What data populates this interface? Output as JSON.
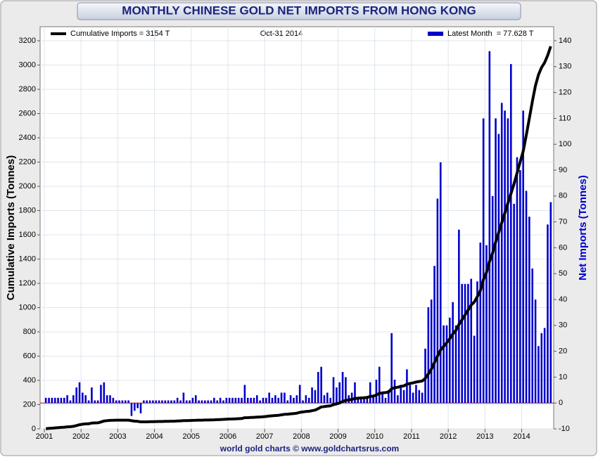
{
  "chart_data": {
    "type": "bar",
    "title": "MONTHLY CHINESE GOLD NET IMPORTS FROM HONG KONG",
    "annotation": "Oct-31  2014",
    "footer": "world gold charts © www.goldchartsrus.com",
    "y_label": "Cumulative Imports (Tonnes)",
    "y2_label": "Net Imports (Tonnes)",
    "categories": [
      "2001",
      null,
      null,
      null,
      null,
      null,
      null,
      null,
      null,
      null,
      null,
      null,
      "2002",
      null,
      null,
      null,
      null,
      null,
      null,
      null,
      null,
      null,
      null,
      null,
      "2003",
      null,
      null,
      null,
      null,
      null,
      null,
      null,
      null,
      null,
      null,
      null,
      "2004",
      null,
      null,
      null,
      null,
      null,
      null,
      null,
      null,
      null,
      null,
      null,
      "2005",
      null,
      null,
      null,
      null,
      null,
      null,
      null,
      null,
      null,
      null,
      null,
      "2006",
      null,
      null,
      null,
      null,
      null,
      null,
      null,
      null,
      null,
      null,
      null,
      "2007",
      null,
      null,
      null,
      null,
      null,
      null,
      null,
      null,
      null,
      null,
      null,
      "2008",
      null,
      null,
      null,
      null,
      null,
      null,
      null,
      null,
      null,
      null,
      null,
      "2009",
      null,
      null,
      null,
      null,
      null,
      null,
      null,
      null,
      null,
      null,
      null,
      "2010",
      null,
      null,
      null,
      null,
      null,
      null,
      null,
      null,
      null,
      null,
      null,
      "2011",
      null,
      null,
      null,
      null,
      null,
      null,
      null,
      null,
      null,
      null,
      null,
      "2012",
      null,
      null,
      null,
      null,
      null,
      null,
      null,
      null,
      null,
      null,
      null,
      "2013",
      null,
      null,
      null,
      null,
      null,
      null,
      null,
      null,
      null,
      null,
      null,
      "2014",
      null,
      null,
      null,
      null,
      null,
      null,
      null,
      null,
      null
    ],
    "series": [
      {
        "name": "Cumulative Imports = 3154 T",
        "color": "#000000",
        "type": "line",
        "values": [
          2,
          4,
          6,
          8,
          10,
          12,
          14,
          17,
          18,
          21,
          27,
          34,
          38,
          41,
          42,
          48,
          49,
          50,
          57,
          65,
          68,
          70,
          71,
          72,
          72,
          72,
          72,
          72,
          67,
          64,
          62,
          58,
          58,
          58,
          59,
          59,
          60,
          61,
          61,
          62,
          62,
          63,
          63,
          65,
          66,
          68,
          68,
          69,
          70,
          71,
          72,
          72,
          73,
          73,
          74,
          75,
          76,
          77,
          78,
          80,
          81,
          82,
          83,
          84,
          85,
          92,
          93,
          94,
          95,
          97,
          98,
          100,
          102,
          106,
          108,
          110,
          112,
          116,
          120,
          121,
          124,
          126,
          129,
          136,
          140,
          143,
          145,
          150,
          155,
          167,
          181,
          184,
          188,
          190,
          200,
          206,
          214,
          226,
          236,
          239,
          243,
          251,
          253,
          255,
          257,
          259,
          267,
          270,
          279,
          293,
          297,
          299,
          304,
          331,
          340,
          343,
          350,
          355,
          368,
          375,
          379,
          386,
          391,
          395,
          416,
          453,
          493,
          546,
          600,
          650,
          680,
          710,
          743,
          782,
          812,
          860,
          900,
          940,
          980,
          1020,
          1046,
          1090,
          1140,
          1230,
          1290,
          1380,
          1450,
          1540,
          1620,
          1700,
          1780,
          1860,
          1940,
          2020,
          2110,
          2200,
          2290,
          2420,
          2560,
          2700,
          2830,
          2920,
          2980,
          3020,
          3080,
          3154
        ]
      },
      {
        "name": "Latest Month  = 77.628 T",
        "color": "#0000cc",
        "type": "bar",
        "axis": "y2",
        "values": [
          2,
          2,
          2,
          2,
          2,
          2,
          2,
          3,
          1,
          3,
          6,
          8,
          4,
          3,
          1,
          6,
          1,
          1,
          7,
          8,
          3,
          3,
          2,
          1,
          1,
          1,
          1,
          1,
          -5,
          -3,
          -2,
          -4,
          1,
          1,
          1,
          1,
          1,
          1,
          1,
          1,
          1,
          1,
          1,
          2,
          1,
          4,
          1,
          1,
          2,
          3,
          1,
          1,
          1,
          1,
          1,
          2,
          1,
          2,
          1,
          2,
          2,
          2,
          2,
          2,
          2,
          7,
          2,
          2,
          2,
          3,
          1,
          2,
          2,
          4,
          2,
          3,
          2,
          4,
          4,
          1,
          3,
          2,
          3,
          7,
          1,
          3,
          2,
          6,
          5,
          12,
          14,
          3,
          4,
          2,
          10,
          6,
          8,
          12,
          10,
          3,
          4,
          8,
          2,
          2,
          2,
          2,
          8,
          3,
          9,
          14,
          4,
          2,
          5,
          27,
          9,
          3,
          7,
          5,
          13,
          7,
          4,
          7,
          5,
          4,
          21,
          37,
          40,
          53,
          79,
          93,
          30,
          30,
          33,
          39,
          30,
          67,
          46,
          46,
          46,
          48,
          26,
          47,
          62,
          110,
          61,
          136,
          80,
          110,
          104,
          116,
          113,
          110,
          131,
          77,
          95,
          90,
          113,
          82,
          72,
          52,
          40,
          22,
          27,
          29,
          69,
          77.628
        ]
      }
    ],
    "ylim": [
      0,
      3200
    ],
    "yticks": [
      0,
      200,
      400,
      600,
      800,
      1000,
      1200,
      1400,
      1600,
      1800,
      2000,
      2200,
      2400,
      2600,
      2800,
      3000,
      3200
    ],
    "y2lim": [
      -10,
      140
    ],
    "y2ticks": [
      -10,
      0,
      10,
      20,
      30,
      40,
      50,
      60,
      70,
      80,
      90,
      100,
      110,
      120,
      130,
      140
    ],
    "grid": true
  }
}
